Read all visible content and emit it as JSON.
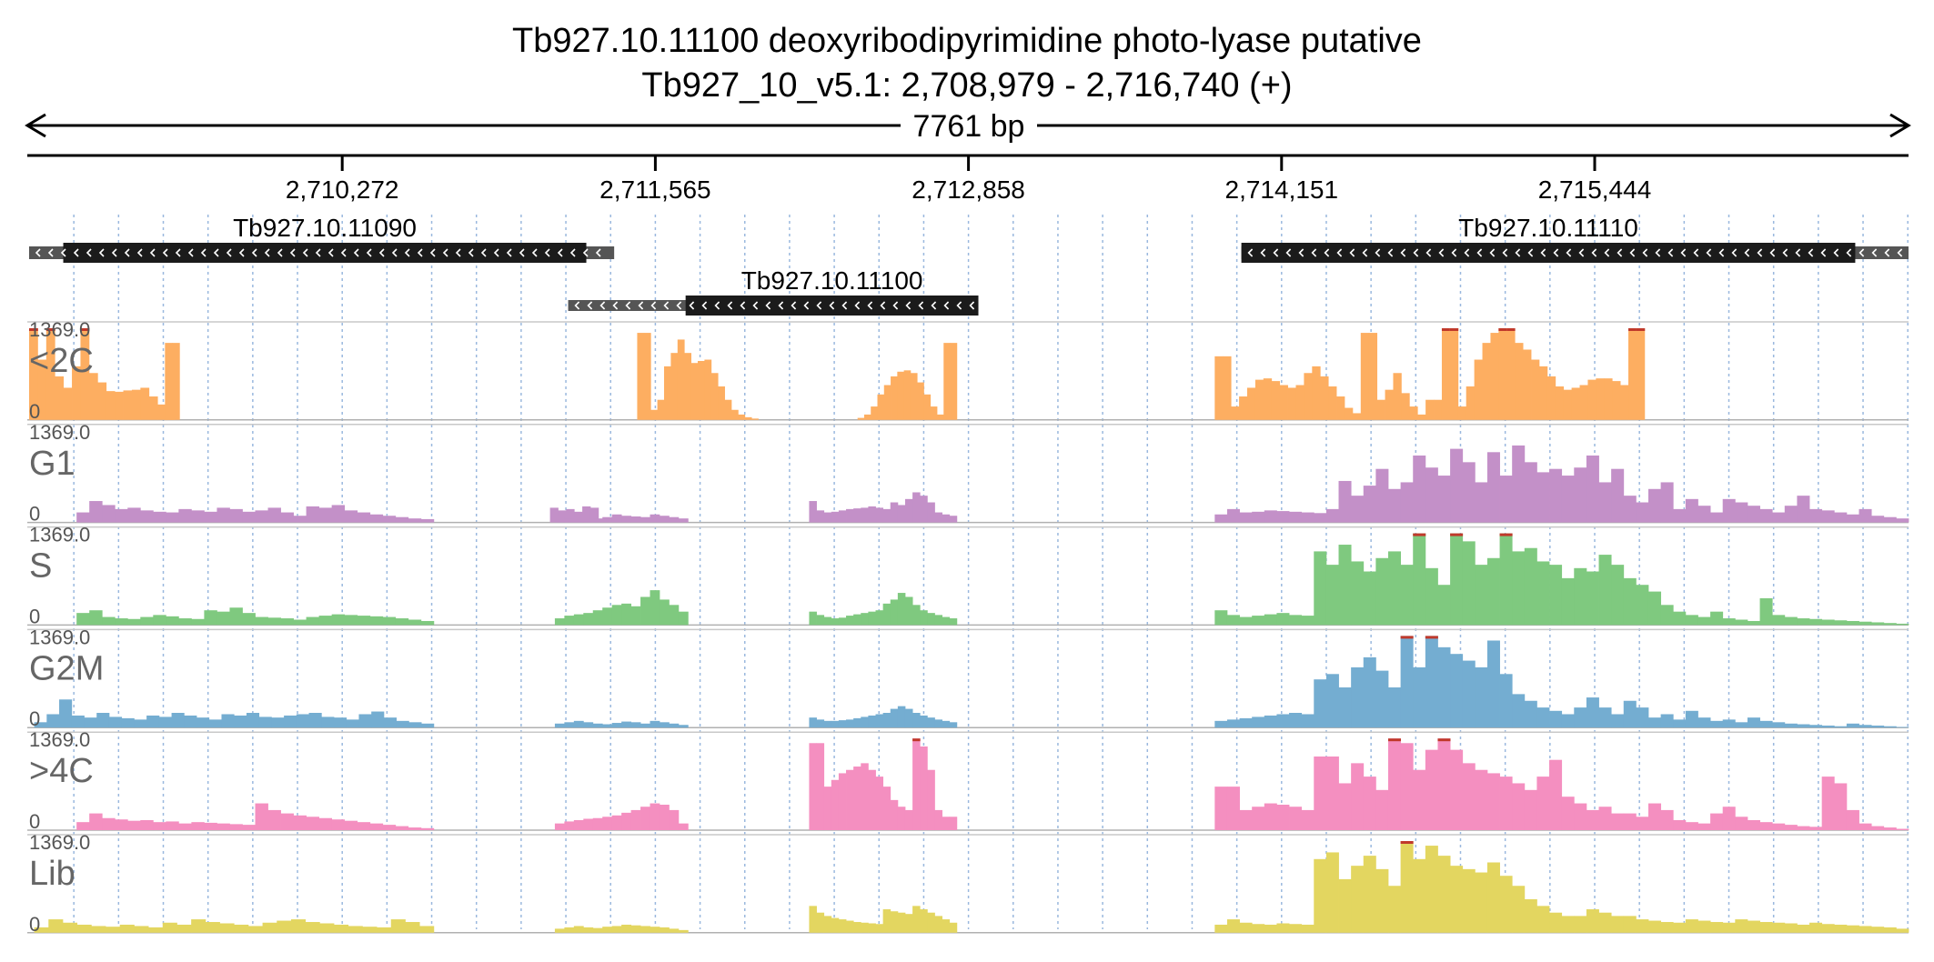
{
  "chart_data": {
    "type": "genome-browser-coverage",
    "title_line1": "Tb927.10.11100  deoxyribodipyrimidine photo-lyase  putative",
    "title_line2": "Tb927_10_v5.1: 2,708,979 - 2,716,740 (+)",
    "span_label": "7761 bp",
    "xlim": [
      2708979,
      2716740
    ],
    "ticks": [
      {
        "pos": 2710272,
        "label": "2,710,272"
      },
      {
        "pos": 2711565,
        "label": "2,711,565"
      },
      {
        "pos": 2712858,
        "label": "2,712,858"
      },
      {
        "pos": 2714151,
        "label": "2,714,151"
      },
      {
        "pos": 2715444,
        "label": "2,715,444"
      }
    ],
    "genes": [
      {
        "name": "Tb927.10.11090",
        "start": 2708979,
        "end": 2711395,
        "cds_start": 2709120,
        "cds_end": 2711280,
        "row": 0,
        "strand": "-"
      },
      {
        "name": "Tb927.10.11110",
        "start": 2713985,
        "end": 2716740,
        "cds_start": 2713985,
        "cds_end": 2716520,
        "row": 0,
        "strand": "-"
      },
      {
        "name": "Tb927.10.11100",
        "start": 2711205,
        "end": 2712899,
        "cds_start": 2711690,
        "cds_end": 2712899,
        "row": 1,
        "strand": "-"
      }
    ],
    "tracks": [
      {
        "name": "<2C",
        "color": "#fdae61",
        "ymax": "1369.0",
        "ymin": "0",
        "segments": [
          {
            "start": 2708979,
            "end": 2709580,
            "values": [
              1369,
              900,
              1369,
              650,
              480,
              800,
              1369,
              700,
              560,
              430,
              420,
              440,
              450,
              480,
              350,
              230,
              60
            ]
          },
          {
            "start": 2709540,
            "end": 2709600,
            "values": [
              1150,
              1150
            ]
          },
          {
            "start": 2711490,
            "end": 2711990,
            "values": [
              1300,
              1300,
              150,
              300,
              800,
              1000,
              1200,
              1000,
              850,
              880,
              900,
              700,
              500,
              300,
              150,
              80,
              40,
              20
            ]
          },
          {
            "start": 2712400,
            "end": 2712810,
            "values": [
              30,
              80,
              200,
              380,
              520,
              650,
              720,
              740,
              700,
              560,
              380,
              200,
              80,
              1150,
              1150
            ]
          },
          {
            "start": 2713875,
            "end": 2715650,
            "values": [
              950,
              950,
              200,
              350,
              480,
              600,
              620,
              580,
              520,
              480,
              520,
              700,
              800,
              650,
              500,
              350,
              180,
              100,
              1300,
              1300,
              300,
              450,
              700,
              400,
              200,
              80,
              300,
              300,
              1369,
              1369,
              200,
              500,
              900,
              1150,
              1300,
              1369,
              1369,
              1150,
              1050,
              900,
              800,
              650,
              500,
              450,
              480,
              520,
              600,
              620,
              620,
              580,
              520,
              1369,
              1369
            ]
          }
        ]
      },
      {
        "name": "G1",
        "color": "#c390c8",
        "ymax": "1369.0",
        "ymin": "0",
        "segments": [
          {
            "start": 2709175,
            "end": 2710650,
            "values": [
              150,
              320,
              260,
              200,
              220,
              180,
              160,
              150,
              200,
              180,
              160,
              220,
              200,
              160,
              180,
              220,
              150,
              100,
              240,
              220,
              260,
              180,
              150,
              120,
              100,
              80,
              60,
              50
            ]
          },
          {
            "start": 2711130,
            "end": 2711330,
            "values": [
              220,
              180,
              200,
              160,
              240,
              220
            ]
          },
          {
            "start": 2711150,
            "end": 2711700,
            "values": [
              80,
              60,
              70,
              50,
              60,
              80,
              120,
              100,
              90,
              80,
              120,
              100,
              80,
              60
            ]
          },
          {
            "start": 2712200,
            "end": 2712810,
            "values": [
              320,
              180,
              150,
              160,
              180,
              200,
              210,
              220,
              240,
              220,
              200,
              300,
              260,
              350,
              450,
              400,
              300,
              150,
              120,
              100
            ]
          },
          {
            "start": 2713875,
            "end": 2716740,
            "values": [
              120,
              200,
              150,
              160,
              180,
              170,
              160,
              150,
              140,
              200,
              620,
              400,
              550,
              800,
              500,
              600,
              1000,
              820,
              700,
              1100,
              900,
              600,
              1050,
              700,
              1150,
              900,
              750,
              800,
              700,
              820,
              1000,
              600,
              800,
              400,
              300,
              500,
              600,
              200,
              350,
              250,
              150,
              350,
              300,
              250,
              200,
              150,
              250,
              400,
              200,
              180,
              150,
              120,
              200,
              100,
              80,
              60
            ]
          }
        ]
      },
      {
        "name": "S",
        "color": "#7fc97f",
        "ymax": "1369.0",
        "ymin": "0",
        "segments": [
          {
            "start": 2709175,
            "end": 2710650,
            "values": [
              180,
              220,
              120,
              100,
              90,
              120,
              150,
              130,
              100,
              90,
              220,
              200,
              260,
              180,
              120,
              110,
              100,
              80,
              120,
              140,
              160,
              150,
              140,
              130,
              120,
              100,
              80,
              60
            ]
          },
          {
            "start": 2711150,
            "end": 2711700,
            "values": [
              100,
              140,
              160,
              180,
              220,
              260,
              300,
              320,
              280,
              420,
              520,
              380,
              300,
              200
            ]
          },
          {
            "start": 2712200,
            "end": 2712810,
            "values": [
              200,
              150,
              120,
              100,
              110,
              140,
              160,
              180,
              200,
              220,
              320,
              380,
              480,
              420,
              300,
              220,
              180,
              150,
              120,
              100
            ]
          },
          {
            "start": 2713875,
            "end": 2716740,
            "values": [
              220,
              150,
              120,
              140,
              160,
              180,
              150,
              140,
              1100,
              900,
              1200,
              950,
              800,
              1000,
              1100,
              900,
              1369,
              850,
              600,
              1369,
              1250,
              900,
              1000,
              1369,
              1100,
              1150,
              950,
              900,
              700,
              850,
              800,
              1050,
              900,
              700,
              600,
              500,
              300,
              200,
              150,
              120,
              200,
              100,
              80,
              60,
              400,
              150,
              120,
              100,
              90,
              80,
              70,
              60,
              50,
              40,
              30,
              20
            ]
          }
        ]
      },
      {
        "name": "G2M",
        "color": "#74add1",
        "ymax": "1369.0",
        "ymin": "0",
        "segments": [
          {
            "start": 2709000,
            "end": 2710650,
            "values": [
              80,
              200,
              420,
              180,
              150,
              220,
              160,
              140,
              120,
              180,
              160,
              220,
              180,
              150,
              120,
              200,
              180,
              220,
              160,
              150,
              180,
              200,
              220,
              160,
              150,
              120,
              200,
              240,
              150,
              100,
              80,
              60
            ]
          },
          {
            "start": 2711150,
            "end": 2711700,
            "values": [
              60,
              80,
              100,
              80,
              60,
              50,
              70,
              90,
              80,
              60,
              100,
              80,
              60,
              40
            ]
          },
          {
            "start": 2712200,
            "end": 2712810,
            "values": [
              150,
              120,
              100,
              100,
              110,
              120,
              140,
              160,
              180,
              200,
              220,
              280,
              320,
              280,
              220,
              180,
              150,
              120,
              100,
              80
            ]
          },
          {
            "start": 2713875,
            "end": 2716740,
            "values": [
              100,
              120,
              140,
              160,
              180,
              200,
              220,
              200,
              720,
              800,
              600,
              900,
              1050,
              850,
              600,
              1369,
              900,
              1369,
              1200,
              1100,
              1000,
              900,
              1300,
              800,
              500,
              400,
              300,
              250,
              200,
              300,
              450,
              300,
              200,
              400,
              300,
              150,
              200,
              120,
              250,
              150,
              100,
              120,
              80,
              150,
              100,
              80,
              60,
              50,
              40,
              30,
              20,
              60,
              40,
              30,
              20,
              10
            ]
          }
        ]
      },
      {
        "name": ">4C",
        "color": "#f48fc0",
        "ymax": "1369.0",
        "ymin": "0",
        "segments": [
          {
            "start": 2709175,
            "end": 2710650,
            "values": [
              120,
              250,
              180,
              160,
              140,
              150,
              120,
              130,
              100,
              120,
              110,
              100,
              90,
              80,
              400,
              300,
              250,
              220,
              200,
              180,
              160,
              140,
              120,
              100,
              80,
              60,
              40,
              30
            ]
          },
          {
            "start": 2711150,
            "end": 2711700,
            "values": [
              100,
              130,
              150,
              170,
              180,
              200,
              220,
              260,
              300,
              350,
              400,
              380,
              300,
              100
            ]
          },
          {
            "start": 2712200,
            "end": 2712810,
            "values": [
              1300,
              1300,
              650,
              750,
              850,
              900,
              950,
              1000,
              900,
              800,
              650,
              450,
              350,
              300,
              1369,
              1250,
              900,
              300,
              200,
              200
            ]
          },
          {
            "start": 2713875,
            "end": 2716740,
            "values": [
              650,
              650,
              300,
              350,
              400,
              380,
              350,
              300,
              1100,
              1100,
              700,
              1000,
              800,
              600,
              1369,
              1300,
              900,
              1200,
              1369,
              1200,
              1000,
              900,
              850,
              800,
              700,
              600,
              800,
              1050,
              500,
              400,
              300,
              350,
              250,
              250,
              200,
              400,
              300,
              150,
              120,
              100,
              250,
              350,
              200,
              150,
              120,
              100,
              80,
              60,
              50,
              800,
              700,
              300,
              100,
              60,
              40,
              20
            ]
          }
        ]
      },
      {
        "name": "Lib",
        "color": "#e3d660",
        "ymax": "1369.0",
        "ymin": "0",
        "segments": [
          {
            "start": 2709000,
            "end": 2710650,
            "values": [
              80,
              200,
              150,
              120,
              100,
              90,
              120,
              100,
              80,
              150,
              120,
              200,
              160,
              140,
              120,
              100,
              150,
              180,
              200,
              160,
              140,
              120,
              100,
              90,
              80,
              200,
              160,
              100
            ]
          },
          {
            "start": 2711150,
            "end": 2711700,
            "values": [
              60,
              80,
              100,
              80,
              70,
              90,
              100,
              120,
              110,
              100,
              90,
              80,
              60,
              40
            ]
          },
          {
            "start": 2712200,
            "end": 2712810,
            "values": [
              400,
              300,
              250,
              220,
              200,
              180,
              160,
              150,
              140,
              130,
              350,
              320,
              300,
              280,
              400,
              350,
              300,
              250,
              200,
              150
            ]
          },
          {
            "start": 2713875,
            "end": 2716740,
            "values": [
              120,
              200,
              150,
              130,
              120,
              140,
              130,
              120,
              1100,
              1200,
              800,
              1000,
              1150,
              950,
              700,
              1369,
              1100,
              1300,
              1150,
              1000,
              950,
              900,
              1050,
              850,
              700,
              500,
              400,
              300,
              250,
              250,
              350,
              300,
              250,
              250,
              200,
              180,
              160,
              150,
              200,
              180,
              160,
              150,
              200,
              180,
              160,
              150,
              140,
              120,
              150,
              130,
              120,
              110,
              100,
              90,
              80,
              60
            ]
          }
        ]
      }
    ]
  }
}
